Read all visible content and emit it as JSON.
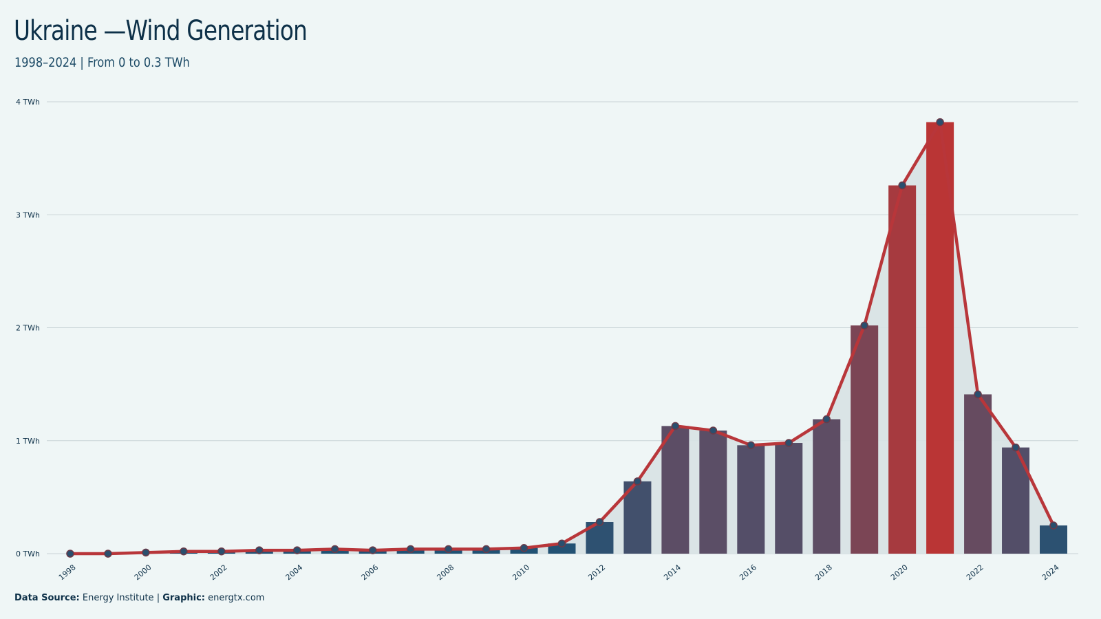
{
  "header": {
    "title": "Ukraine —Wind Generation",
    "subtitle": "1998–2024 | From 0 to 0.3 TWh"
  },
  "footer": {
    "source_label": "Data Source:",
    "source_value": "Energy Institute",
    "separator": "|",
    "graphic_label": "Graphic:",
    "graphic_value": "energtx.com"
  },
  "chart_data": {
    "type": "bar",
    "title": "Ukraine —Wind Generation",
    "subtitle": "1998–2024 | From 0 to 0.3 TWh",
    "xlabel": "",
    "ylabel": "",
    "unit": "TWh",
    "ylim": [
      0,
      4
    ],
    "yticks": [
      0,
      1,
      2,
      3,
      4
    ],
    "ytick_labels": [
      "0 TWh",
      "1 TWh",
      "2 TWh",
      "3 TWh",
      "4 TWh"
    ],
    "grid": true,
    "categories": [
      "1998",
      "1999",
      "2000",
      "2001",
      "2002",
      "2003",
      "2004",
      "2005",
      "2006",
      "2007",
      "2008",
      "2009",
      "2010",
      "2011",
      "2012",
      "2013",
      "2014",
      "2015",
      "2016",
      "2017",
      "2018",
      "2019",
      "2020",
      "2021",
      "2022",
      "2023",
      "2024"
    ],
    "xtick_labels": [
      "1998",
      "2000",
      "2002",
      "2004",
      "2006",
      "2008",
      "2010",
      "2012",
      "2014",
      "2016",
      "2018",
      "2020",
      "2022",
      "2024"
    ],
    "values": [
      0.0,
      0.0,
      0.01,
      0.02,
      0.02,
      0.03,
      0.03,
      0.04,
      0.03,
      0.04,
      0.04,
      0.04,
      0.05,
      0.09,
      0.28,
      0.64,
      1.13,
      1.09,
      0.96,
      0.98,
      1.19,
      2.02,
      3.26,
      3.82,
      1.41,
      0.94,
      0.25
    ],
    "overlay": "line with markers and shaded area",
    "colors": {
      "low": "#1e5275",
      "mid": "#5a4e66",
      "high": "#ba3535",
      "line": "#b8363a",
      "area": "#d7e2e4",
      "marker": "#2a4f6e",
      "grid": "#c9d3d6"
    }
  }
}
